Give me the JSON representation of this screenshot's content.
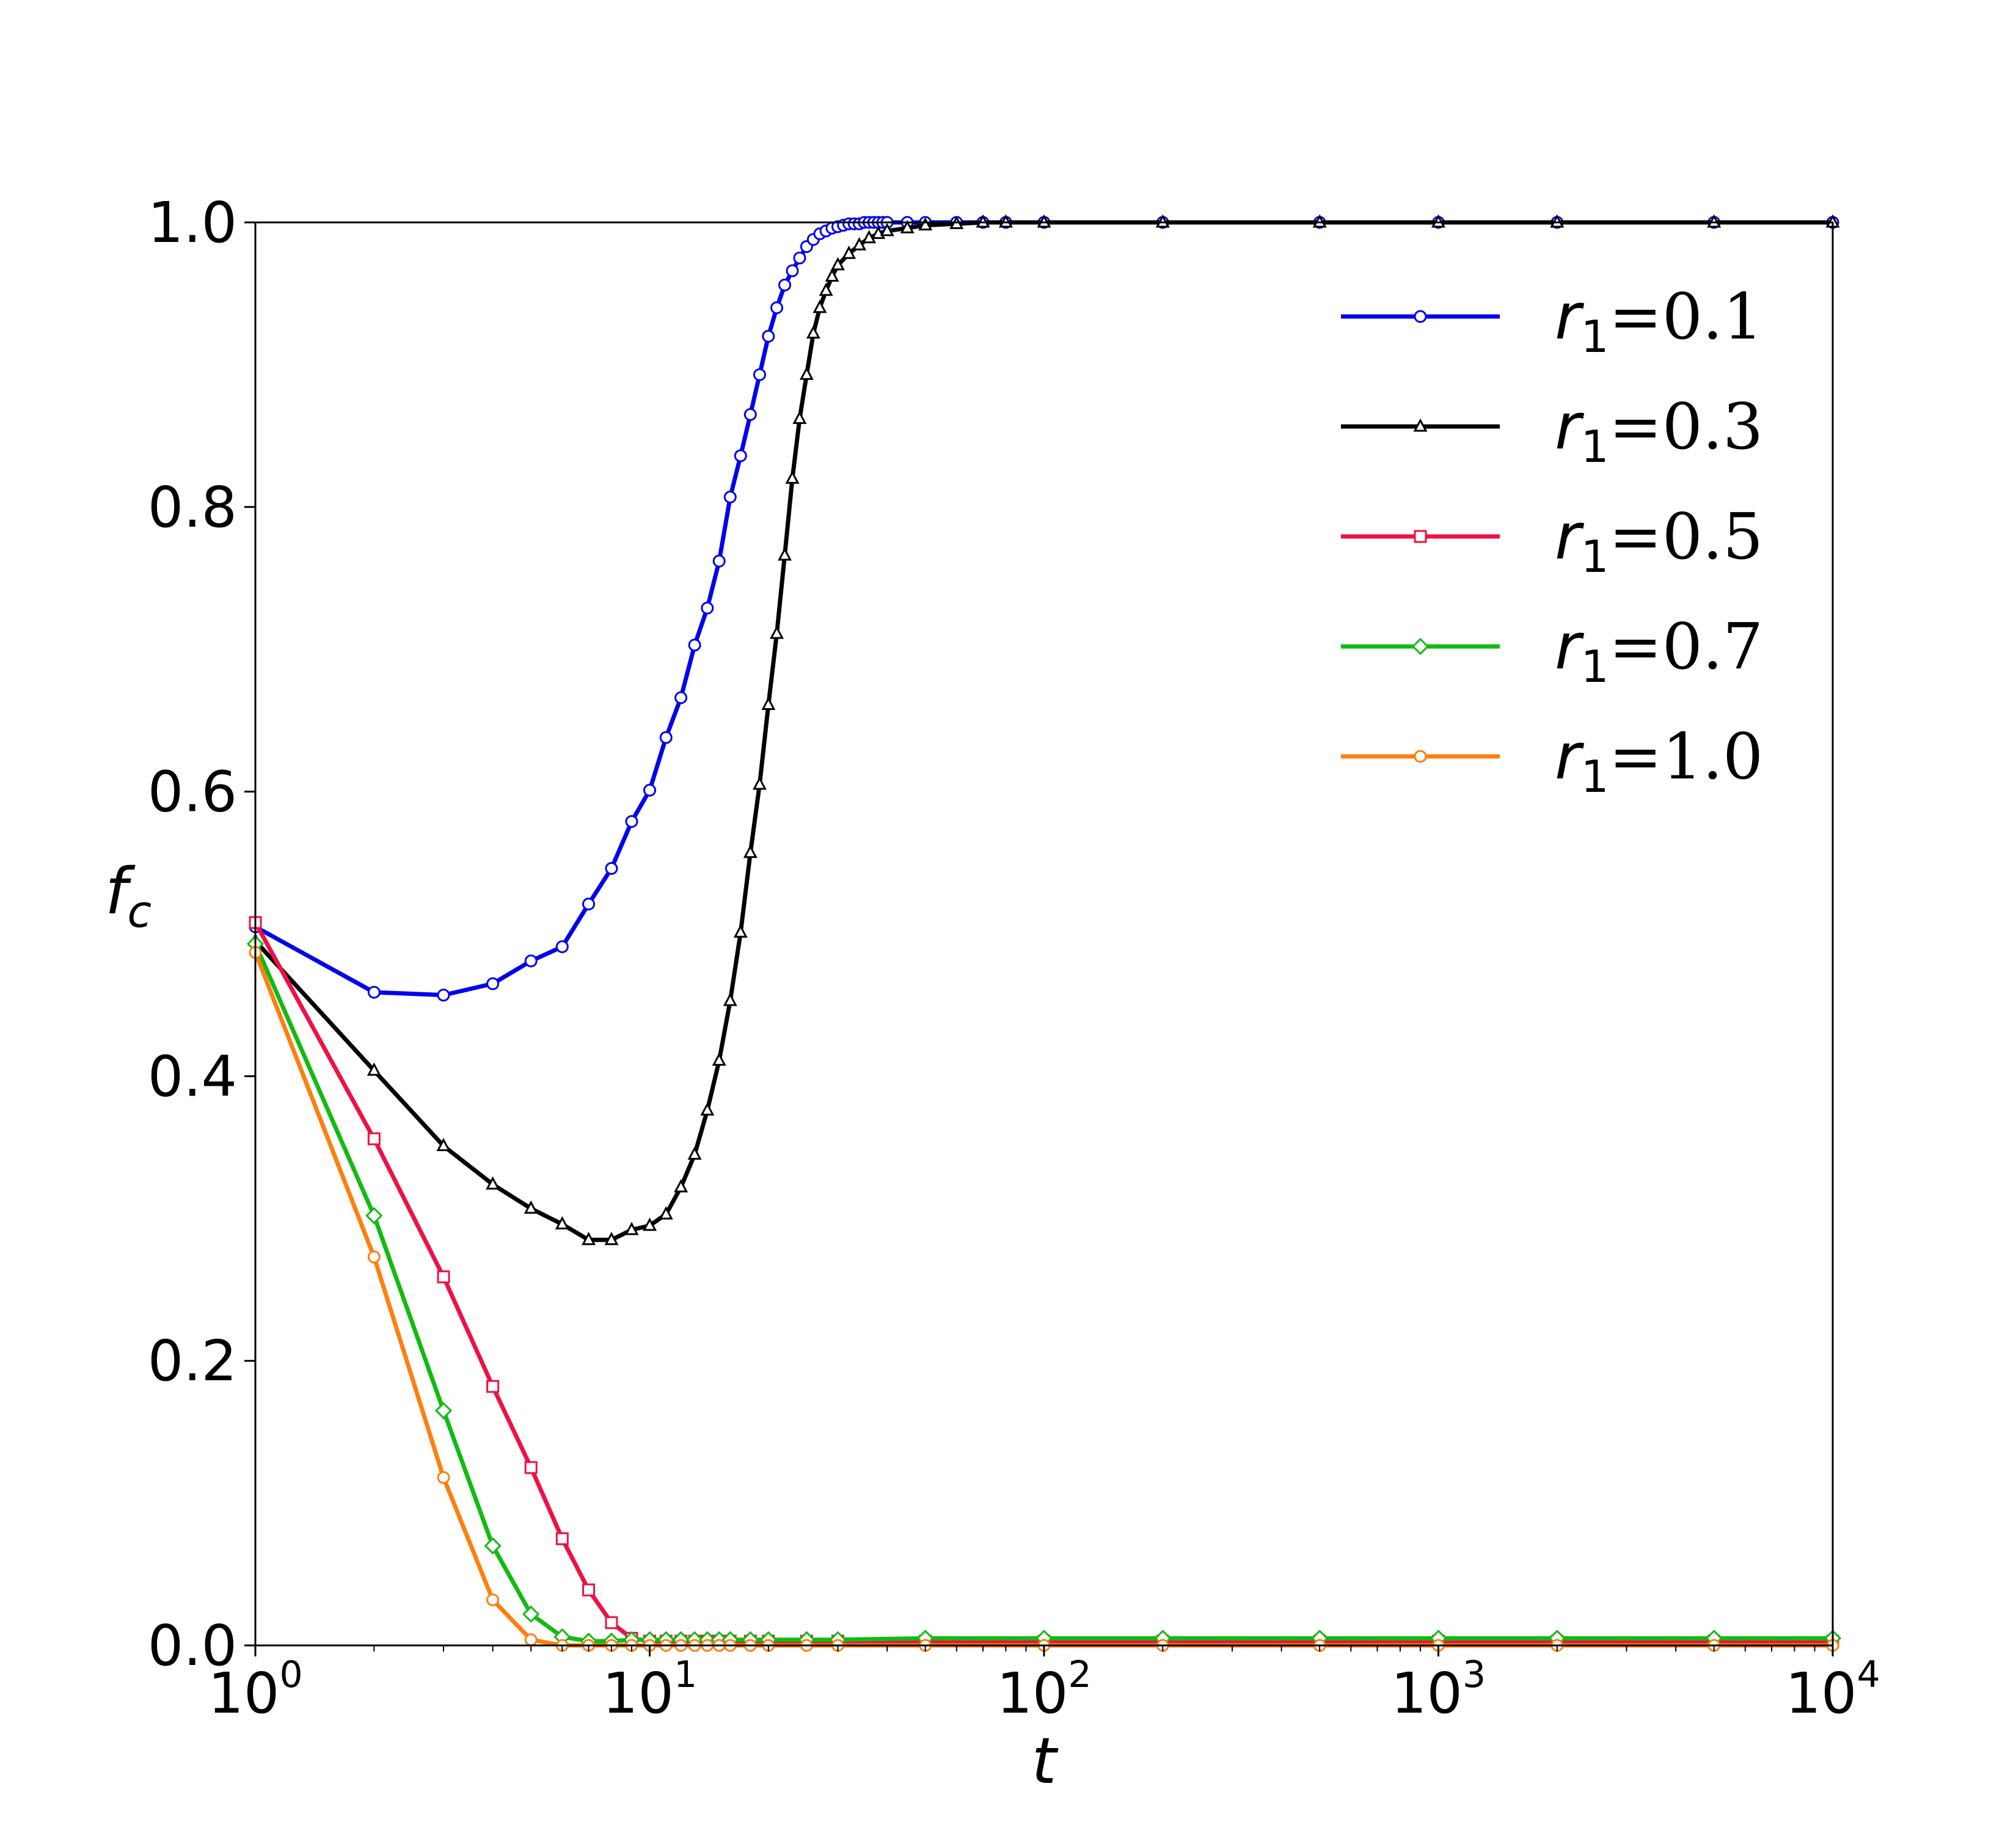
{
  "chart_data": {
    "type": "line",
    "x_scale": "log",
    "xlim": [
      1,
      10000
    ],
    "ylim": [
      0,
      1.0
    ],
    "xlabel": "t",
    "ylabel": "f",
    "ylabel_subscript": "c",
    "x_ticks": [
      {
        "base": "10",
        "exp": "0",
        "value": 1
      },
      {
        "base": "10",
        "exp": "1",
        "value": 10
      },
      {
        "base": "10",
        "exp": "2",
        "value": 100
      },
      {
        "base": "10",
        "exp": "3",
        "value": 1000
      },
      {
        "base": "10",
        "exp": "4",
        "value": 10000
      }
    ],
    "y_ticks": [
      {
        "label": "0.0",
        "value": 0.0
      },
      {
        "label": "0.2",
        "value": 0.2
      },
      {
        "label": "0.4",
        "value": 0.4
      },
      {
        "label": "0.6",
        "value": 0.6
      },
      {
        "label": "0.8",
        "value": 0.8
      },
      {
        "label": "1.0",
        "value": 1.0
      }
    ],
    "legend_position": "top-right",
    "grid": false,
    "series": [
      {
        "name": "r1=0.1",
        "legend_var": "r",
        "legend_sub": "1",
        "legend_rest": "=0.1",
        "color": "#0000ee",
        "marker": "circle",
        "x": [
          1,
          2,
          3,
          4,
          5,
          6,
          7,
          8,
          9,
          10,
          11,
          12,
          13,
          14,
          15,
          16,
          17,
          18,
          19,
          20,
          21,
          22,
          23,
          24,
          25,
          26,
          27,
          28,
          29,
          30,
          31,
          32,
          33,
          34,
          35,
          36,
          37,
          38,
          39,
          40,
          45,
          50,
          60,
          70,
          80,
          100,
          200,
          500,
          1000,
          2000,
          5000,
          10000
        ],
        "y": [
          0.505,
          0.459,
          0.457,
          0.465,
          0.481,
          0.491,
          0.521,
          0.546,
          0.579,
          0.601,
          0.638,
          0.666,
          0.703,
          0.729,
          0.762,
          0.807,
          0.836,
          0.865,
          0.893,
          0.92,
          0.94,
          0.956,
          0.966,
          0.975,
          0.983,
          0.988,
          0.992,
          0.994,
          0.996,
          0.997,
          0.998,
          0.999,
          0.999,
          0.999,
          1.0,
          1.0,
          1.0,
          1.0,
          1.0,
          1.0,
          1.0,
          1.0,
          1.0,
          1.0,
          1.0,
          1.0,
          1.0,
          1.0,
          1.0,
          1.0,
          1.0,
          1.0
        ]
      },
      {
        "name": "r1=0.3",
        "legend_var": "r",
        "legend_sub": "1",
        "legend_rest": "=0.3",
        "color": "#000000",
        "marker": "triangle",
        "x": [
          1,
          2,
          3,
          4,
          5,
          6,
          7,
          8,
          9,
          10,
          11,
          12,
          13,
          14,
          15,
          16,
          17,
          18,
          19,
          20,
          21,
          22,
          23,
          24,
          25,
          26,
          27,
          28,
          29,
          30,
          32,
          34,
          36,
          38,
          40,
          45,
          50,
          60,
          70,
          80,
          100,
          200,
          500,
          1000,
          2000,
          5000,
          10000
        ],
        "y": [
          0.495,
          0.404,
          0.351,
          0.324,
          0.307,
          0.296,
          0.285,
          0.285,
          0.292,
          0.295,
          0.303,
          0.322,
          0.345,
          0.376,
          0.411,
          0.453,
          0.501,
          0.557,
          0.605,
          0.661,
          0.711,
          0.766,
          0.82,
          0.862,
          0.893,
          0.922,
          0.94,
          0.952,
          0.962,
          0.97,
          0.978,
          0.984,
          0.989,
          0.992,
          0.994,
          0.996,
          0.998,
          0.999,
          1.0,
          1.0,
          1.0,
          1.0,
          1.0,
          1.0,
          1.0,
          1.0,
          1.0
        ]
      },
      {
        "name": "r1=0.5",
        "legend_var": "r",
        "legend_sub": "1",
        "legend_rest": "=0.5",
        "color": "#ee1144",
        "marker": "square",
        "x": [
          1,
          2,
          3,
          4,
          5,
          6,
          7,
          8,
          9,
          10,
          11,
          12,
          13,
          14,
          15,
          16,
          18,
          20,
          25,
          30,
          50,
          100,
          200,
          500,
          1000,
          2000,
          5000,
          10000
        ],
        "y": [
          0.508,
          0.356,
          0.259,
          0.182,
          0.125,
          0.075,
          0.039,
          0.016,
          0.005,
          0.003,
          0.003,
          0.003,
          0.003,
          0.003,
          0.003,
          0.003,
          0.003,
          0.003,
          0.003,
          0.003,
          0.003,
          0.003,
          0.003,
          0.003,
          0.003,
          0.003,
          0.003,
          0.003
        ]
      },
      {
        "name": "r1=0.7",
        "legend_var": "r",
        "legend_sub": "1",
        "legend_rest": "=0.7",
        "color": "#11bb11",
        "marker": "diamond",
        "x": [
          1,
          2,
          3,
          4,
          5,
          6,
          7,
          8,
          9,
          10,
          11,
          12,
          13,
          14,
          15,
          16,
          18,
          20,
          25,
          30,
          50,
          100,
          200,
          500,
          1000,
          2000,
          5000,
          10000
        ],
        "y": [
          0.493,
          0.302,
          0.165,
          0.07,
          0.022,
          0.006,
          0.003,
          0.003,
          0.004,
          0.004,
          0.004,
          0.004,
          0.004,
          0.004,
          0.004,
          0.004,
          0.004,
          0.004,
          0.004,
          0.004,
          0.005,
          0.005,
          0.005,
          0.005,
          0.005,
          0.005,
          0.005,
          0.005
        ]
      },
      {
        "name": "r1=1.0",
        "legend_var": "r",
        "legend_sub": "1",
        "legend_rest": "=1.0",
        "color": "#ff7f0e",
        "marker": "circle",
        "x": [
          1,
          2,
          3,
          4,
          5,
          6,
          7,
          8,
          9,
          10,
          11,
          12,
          13,
          14,
          15,
          16,
          18,
          20,
          25,
          30,
          50,
          100,
          200,
          500,
          1000,
          2000,
          5000,
          10000
        ],
        "y": [
          0.487,
          0.273,
          0.118,
          0.032,
          0.004,
          0.0,
          0.0,
          0.0,
          0.0,
          0.0,
          0.0,
          0.0,
          0.0,
          0.0,
          0.0,
          0.0,
          0.0,
          0.0,
          0.0,
          0.0,
          0.0,
          0.0,
          0.0,
          0.0,
          0.0,
          0.0,
          0.0,
          0.0
        ]
      }
    ]
  }
}
